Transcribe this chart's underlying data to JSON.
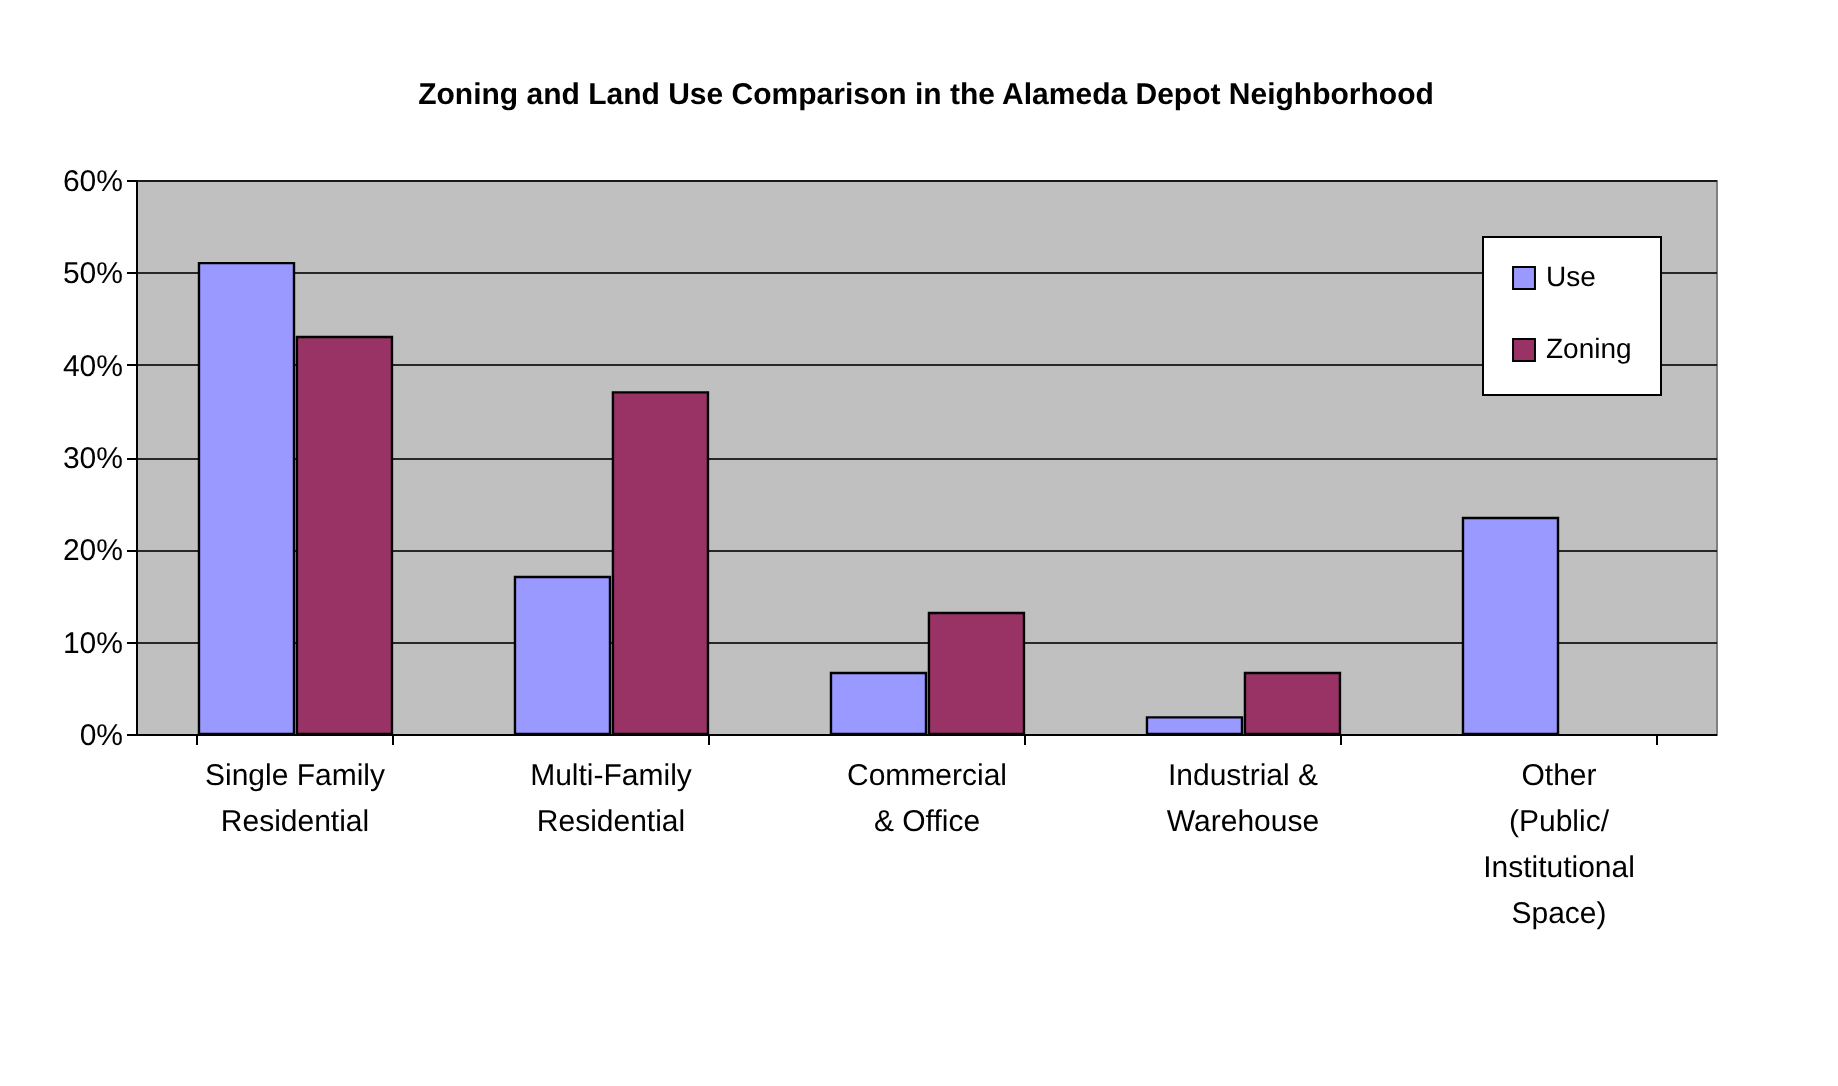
{
  "chart_data": {
    "type": "bar",
    "title": "Zoning and Land Use Comparison in the Alameda Depot Neighborhood",
    "categories": [
      "Single Family\nResidential",
      "Multi-Family\nResidential",
      "Commercial\n& Office",
      "Industrial &\nWarehouse",
      "Other\n(Public/\nInstitutional\nSpace)"
    ],
    "series": [
      {
        "name": "Use",
        "color": "#9999ff",
        "values": [
          51,
          17,
          6.6,
          1.8,
          23.4
        ]
      },
      {
        "name": "Zoning",
        "color": "#993366",
        "values": [
          43,
          37,
          13.1,
          6.6,
          null
        ]
      }
    ],
    "ylim": [
      0,
      60
    ],
    "yticks": [
      {
        "value": 0,
        "label": "0%"
      },
      {
        "value": 10,
        "label": "10%"
      },
      {
        "value": 20,
        "label": "20%"
      },
      {
        "value": 30,
        "label": "30%"
      },
      {
        "value": 40,
        "label": "40%"
      },
      {
        "value": 50,
        "label": "50%"
      },
      {
        "value": 60,
        "label": "60%"
      }
    ],
    "grid": "y",
    "legend": "top right"
  }
}
